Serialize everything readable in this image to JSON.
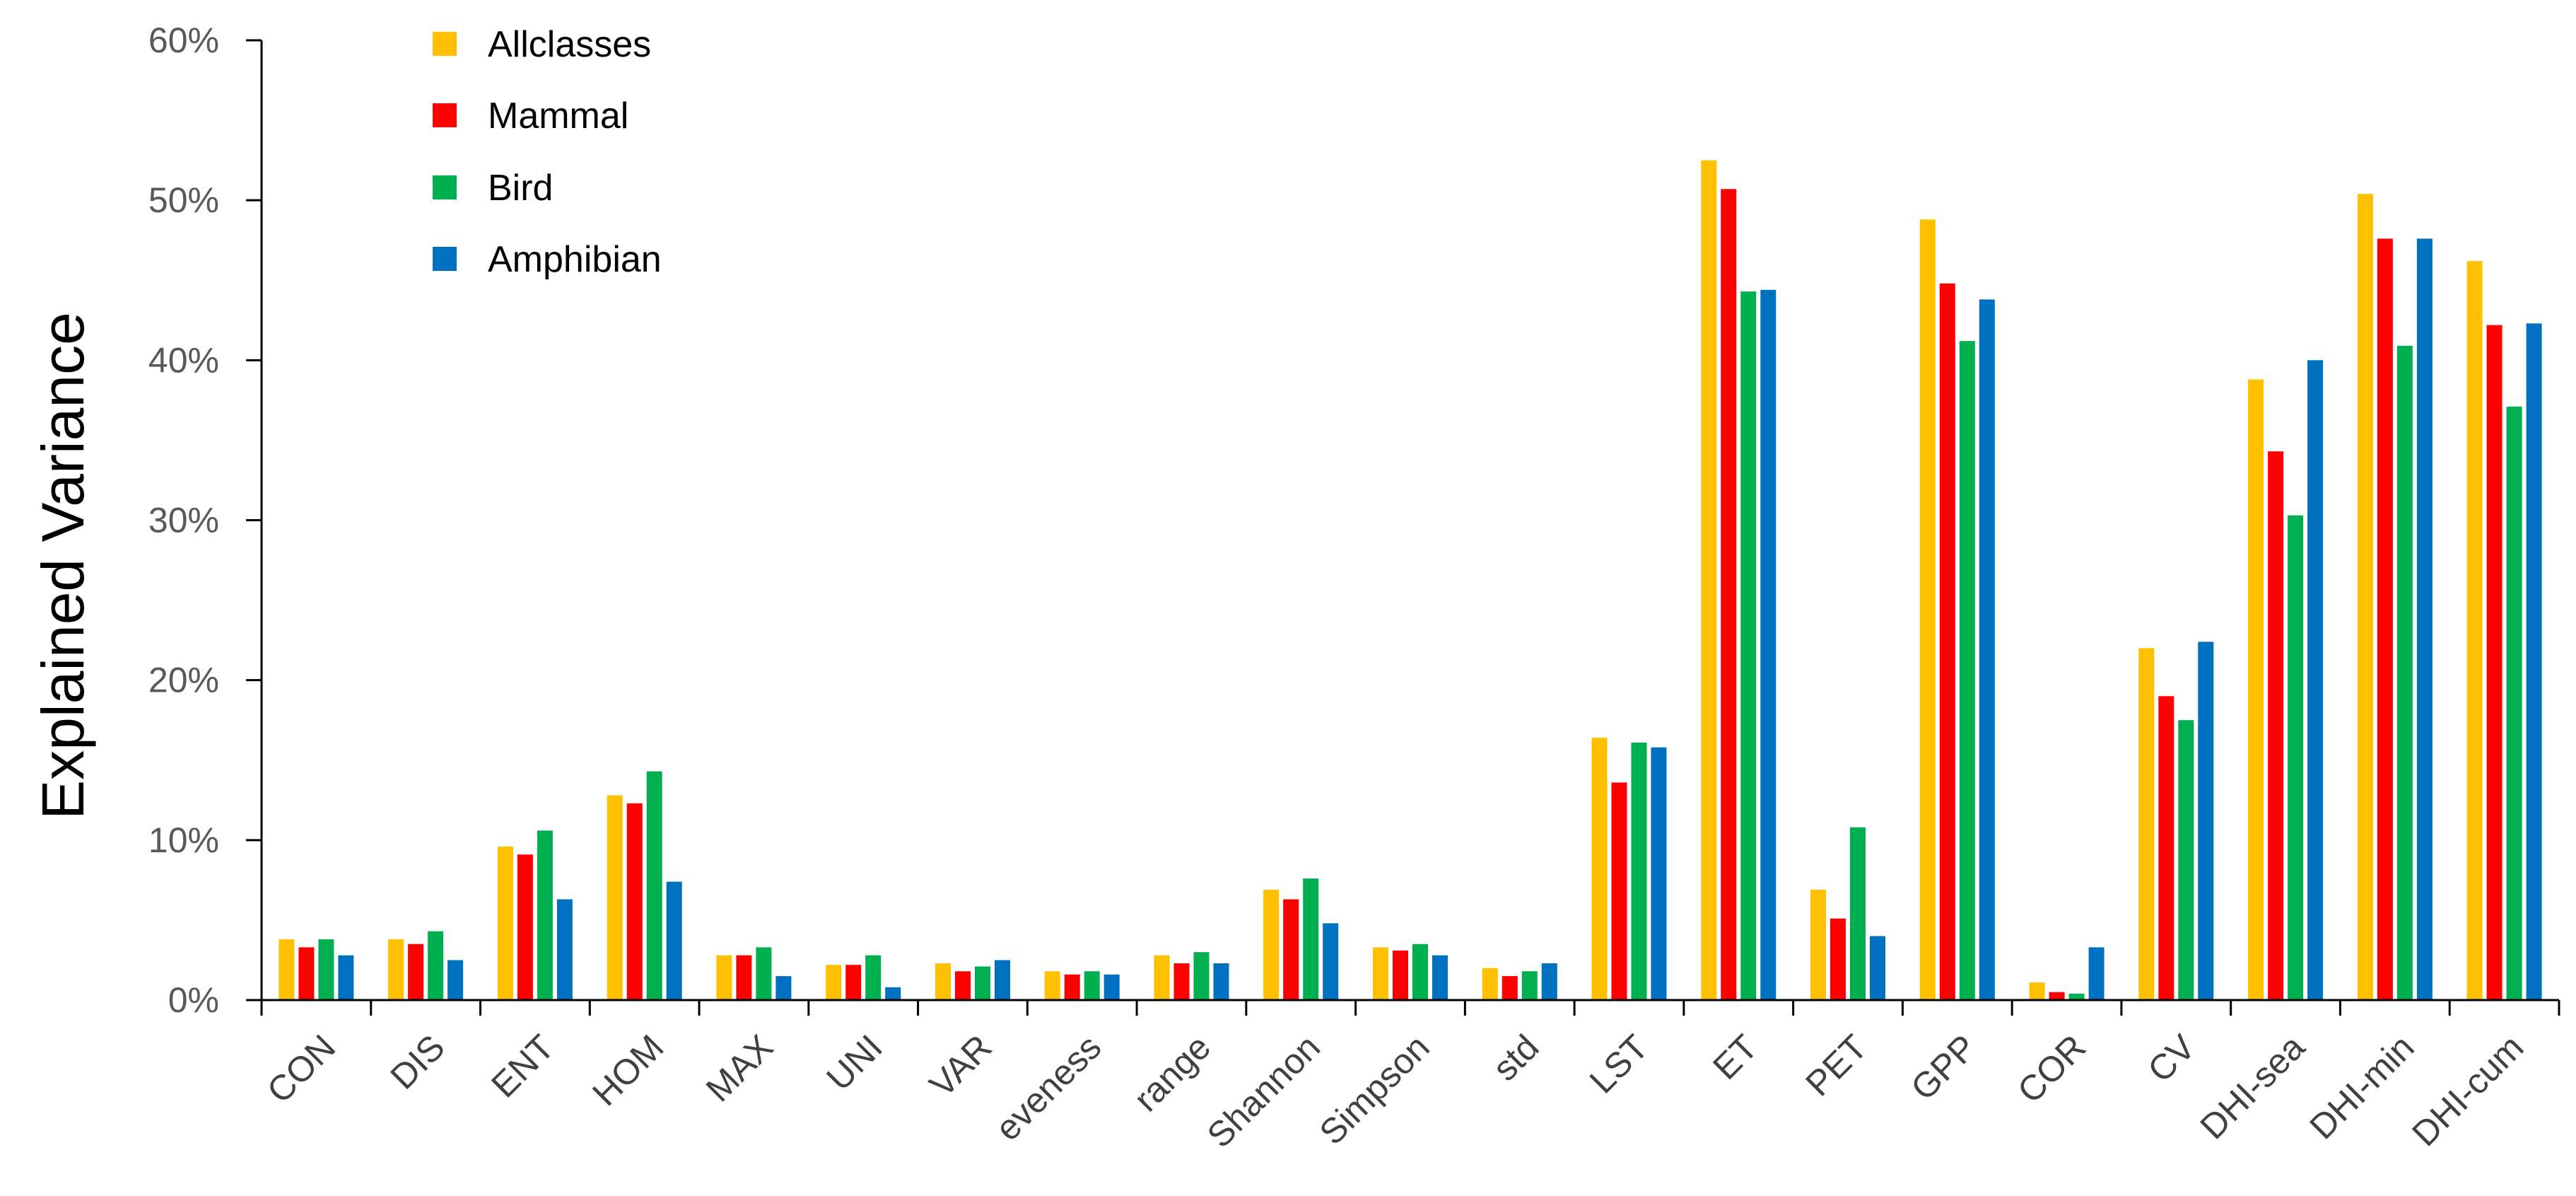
{
  "chart_data": {
    "type": "bar",
    "ylabel": "Explained Variance",
    "xlabel": "",
    "ylim": [
      0,
      60
    ],
    "yticks": [
      "0%",
      "10%",
      "20%",
      "30%",
      "40%",
      "50%",
      "60%"
    ],
    "grid": false,
    "legend_position": "top-left",
    "categories": [
      "CON",
      "DIS",
      "ENT",
      "HOM",
      "MAX",
      "UNI",
      "VAR",
      "eveness",
      "range",
      "Shannon",
      "Simpson",
      "std",
      "LST",
      "ET",
      "PET",
      "GPP",
      "COR",
      "CV",
      "DHI-sea",
      "DHI-min",
      "DHI-cum"
    ],
    "series": [
      {
        "name": "Allclasses",
        "color": "#FFC000",
        "values": [
          3.8,
          3.8,
          9.6,
          12.8,
          2.8,
          2.2,
          2.3,
          1.8,
          2.8,
          6.9,
          3.3,
          2.0,
          16.4,
          52.5,
          6.9,
          48.8,
          1.1,
          22.0,
          38.8,
          50.4,
          46.2
        ]
      },
      {
        "name": "Mammal",
        "color": "#FF0000",
        "values": [
          3.3,
          3.5,
          9.1,
          12.3,
          2.8,
          2.2,
          1.8,
          1.6,
          2.3,
          6.3,
          3.1,
          1.5,
          13.6,
          50.7,
          5.1,
          44.8,
          0.5,
          19.0,
          34.3,
          47.6,
          42.2
        ]
      },
      {
        "name": "Bird",
        "color": "#00B050",
        "values": [
          3.8,
          4.3,
          10.6,
          14.3,
          3.3,
          2.8,
          2.1,
          1.8,
          3.0,
          7.6,
          3.5,
          1.8,
          16.1,
          44.3,
          10.8,
          41.2,
          0.4,
          17.5,
          30.3,
          40.9,
          37.1
        ]
      },
      {
        "name": "Amphibian",
        "color": "#0070C0",
        "values": [
          2.8,
          2.5,
          6.3,
          7.4,
          1.5,
          0.8,
          2.5,
          1.6,
          2.3,
          4.8,
          2.8,
          2.3,
          15.8,
          44.4,
          4.0,
          43.8,
          3.3,
          22.4,
          40.0,
          47.6,
          42.3
        ]
      }
    ]
  }
}
